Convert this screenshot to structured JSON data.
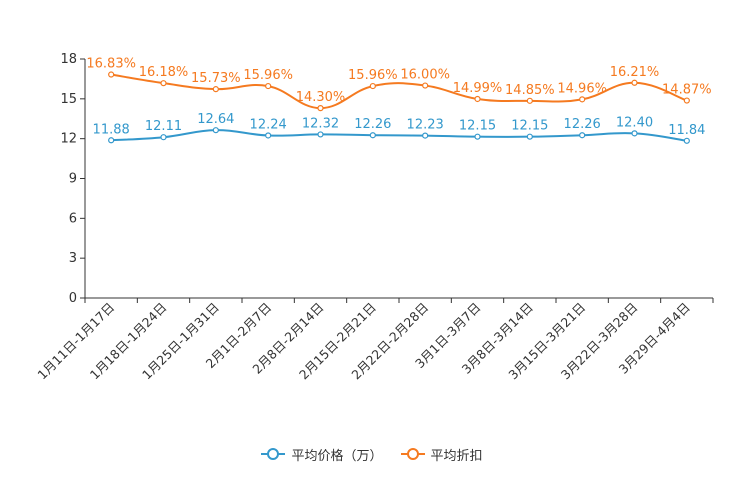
{
  "chart_data": {
    "type": "line",
    "categories": [
      "1月11日-1月17日",
      "1月18日-1月24日",
      "1月25日-1月31日",
      "2月1日-2月7日",
      "2月8日-2月14日",
      "2月15日-2月21日",
      "2月22日-2月28日",
      "3月1日-3月7日",
      "3月8日-3月14日",
      "3月15日-3月21日",
      "3月22日-3月28日",
      "3月29日-4月4日"
    ],
    "ylim": [
      0,
      18
    ],
    "yticks": [
      0,
      3,
      6,
      9,
      12,
      15,
      18
    ],
    "series": [
      {
        "name": "平均价格（万）",
        "color": "#3398cc",
        "values": [
          11.88,
          12.11,
          12.64,
          12.24,
          12.32,
          12.26,
          12.23,
          12.15,
          12.15,
          12.26,
          12.4,
          11.84
        ],
        "labels": [
          "11.88",
          "12.11",
          "12.64",
          "12.24",
          "12.32",
          "12.26",
          "12.23",
          "12.15",
          "12.15",
          "12.26",
          "12.40",
          "11.84"
        ]
      },
      {
        "name": "平均折扣",
        "color": "#f57a20",
        "values": [
          16.83,
          16.18,
          15.73,
          15.96,
          14.3,
          15.96,
          16.0,
          14.99,
          14.85,
          14.96,
          16.21,
          14.87
        ],
        "labels": [
          "16.83%",
          "16.18%",
          "15.73%",
          "15.96%",
          "14.30%",
          "15.96%",
          "16.00%",
          "14.99%",
          "14.85%",
          "14.96%",
          "16.21%",
          "14.87%"
        ]
      }
    ],
    "grid": false,
    "legend_position": "bottom-center"
  },
  "legend": {
    "items": [
      {
        "label": "平均价格（万）",
        "color": "#3398cc"
      },
      {
        "label": "平均折扣",
        "color": "#f57a20"
      }
    ]
  }
}
